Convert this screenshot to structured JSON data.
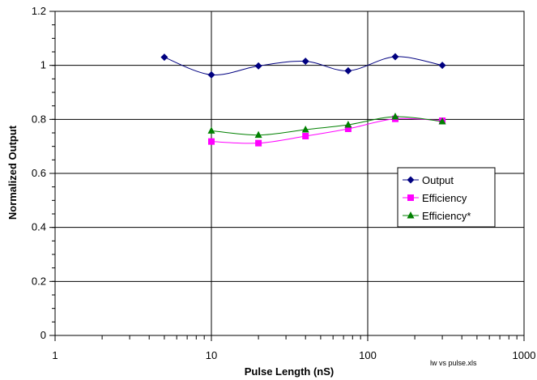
{
  "chart_data": {
    "type": "line",
    "xscale": "log",
    "xlim": [
      1,
      1000
    ],
    "ylim": [
      0,
      1.2
    ],
    "xticks": [
      "1",
      "10",
      "100",
      "1000"
    ],
    "yticks": [
      "0",
      "0.2",
      "0.4",
      "0.6",
      "0.8",
      "1",
      "1.2"
    ],
    "xlabel": "Pulse Length (nS)",
    "ylabel": "Normalized Output",
    "grid": true,
    "legend_position": "right",
    "note": "lw vs pulse.xls",
    "series": [
      {
        "name": "Output",
        "color": "#000080",
        "marker": "diamond",
        "x": [
          5,
          10,
          20,
          40,
          75,
          150,
          300
        ],
        "y": [
          1.03,
          0.965,
          0.998,
          1.015,
          0.98,
          1.032,
          1.0
        ]
      },
      {
        "name": "Efficiency",
        "color": "#ff00ff",
        "marker": "square",
        "x": [
          10,
          20,
          40,
          75,
          150,
          300
        ],
        "y": [
          0.718,
          0.712,
          0.738,
          0.765,
          0.802,
          0.795
        ]
      },
      {
        "name": "Efficiency*",
        "color": "#008000",
        "marker": "triangle",
        "x": [
          10,
          20,
          40,
          75,
          150,
          300
        ],
        "y": [
          0.758,
          0.742,
          0.762,
          0.78,
          0.81,
          0.792
        ]
      }
    ]
  }
}
